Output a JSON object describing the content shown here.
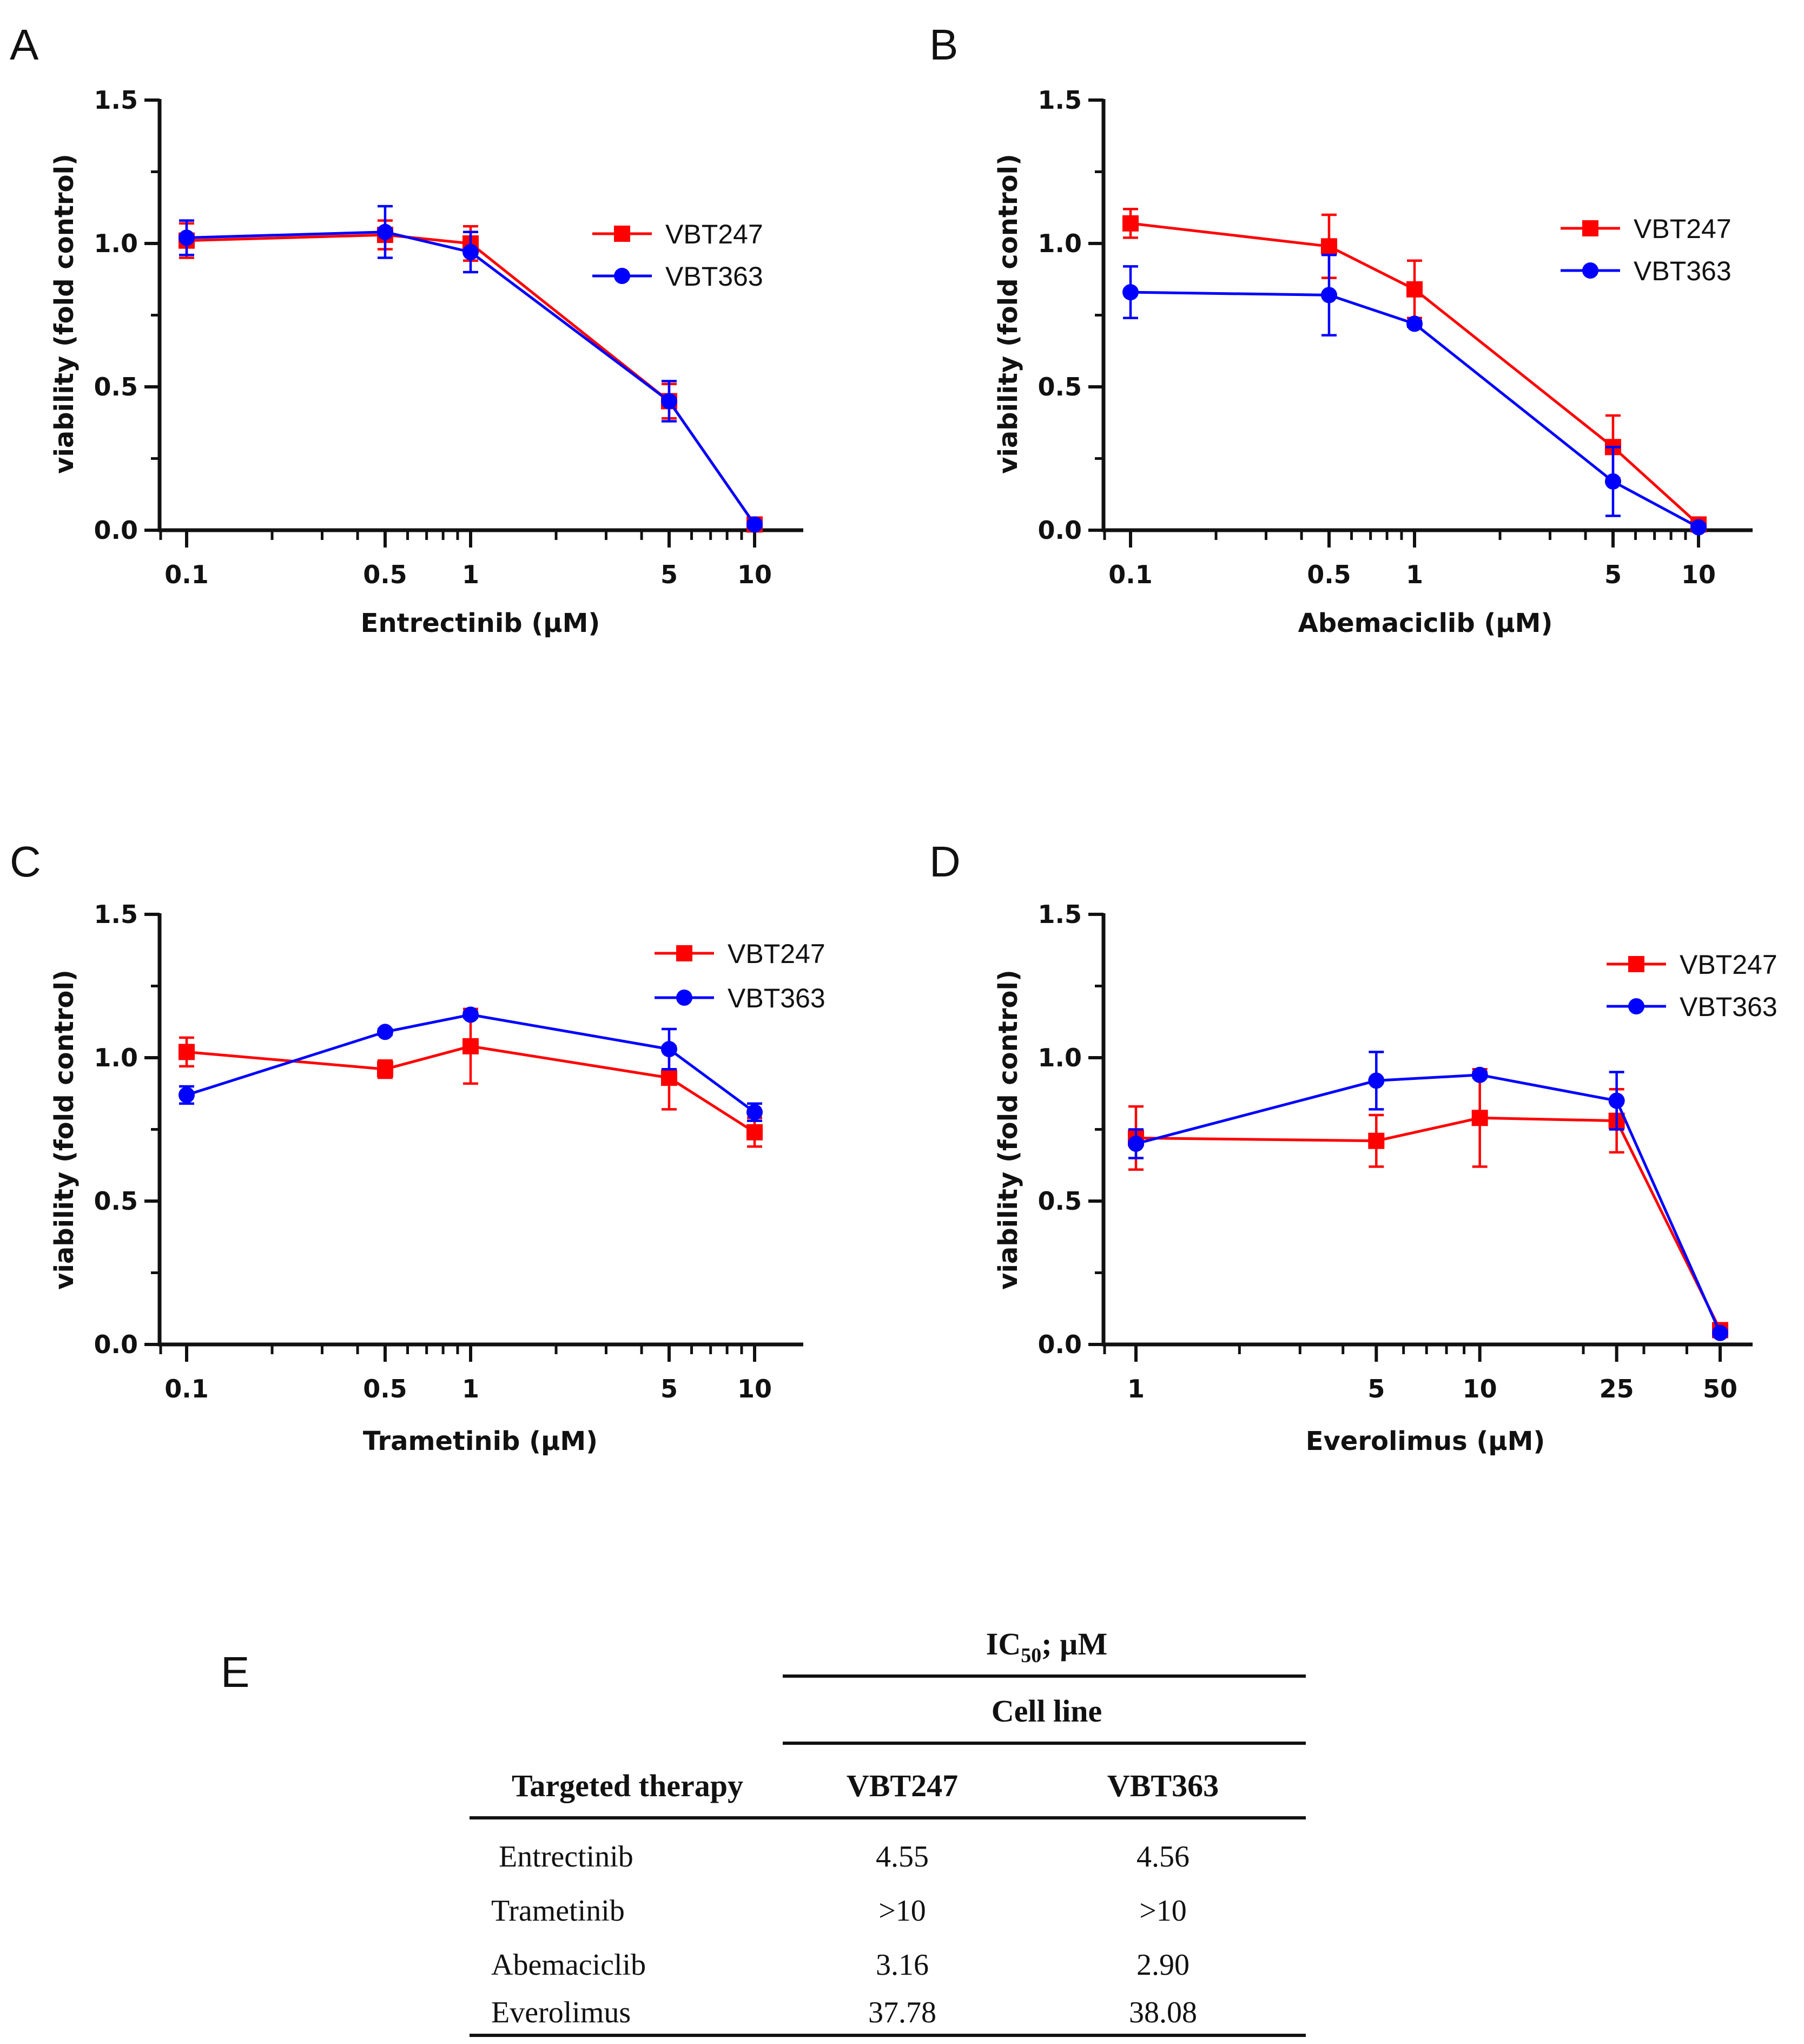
{
  "chart_data": [
    {
      "panel": "A",
      "type": "line",
      "xscale": "log",
      "xlabel": "Entrectinib (µM)",
      "ylabel": "viability (fold control)",
      "ylim": [
        0,
        1.5
      ],
      "yticks": [
        "0.0",
        "0.5",
        "1.0",
        "1.5"
      ],
      "xticks": [
        {
          "value": 0.1,
          "label": "0.1"
        },
        {
          "value": 0.5,
          "label": "0.5"
        },
        {
          "value": 1,
          "label": "1"
        },
        {
          "value": 5,
          "label": "5"
        },
        {
          "value": 10,
          "label": "10"
        }
      ],
      "x": [
        0.1,
        0.5,
        1,
        5,
        10
      ],
      "series": [
        {
          "name": "VBT247",
          "color": "#ff0000",
          "marker": "square",
          "values": [
            1.01,
            1.03,
            1.0,
            0.45,
            0.02
          ],
          "errors": [
            0.06,
            0.05,
            0.06,
            0.06,
            0.02
          ]
        },
        {
          "name": "VBT363",
          "color": "#0000ff",
          "marker": "circle",
          "values": [
            1.02,
            1.04,
            0.97,
            0.45,
            0.02
          ],
          "errors": [
            0.06,
            0.09,
            0.07,
            0.07,
            0.01
          ]
        }
      ],
      "legend": "top-right"
    },
    {
      "panel": "B",
      "type": "line",
      "xscale": "log",
      "xlabel": "Abemaciclib (µM)",
      "ylabel": "viability (fold control)",
      "ylim": [
        0,
        1.5
      ],
      "yticks": [
        "0.0",
        "0.5",
        "1.0",
        "1.5"
      ],
      "xticks": [
        {
          "value": 0.1,
          "label": "0.1"
        },
        {
          "value": 0.5,
          "label": "0.5"
        },
        {
          "value": 1,
          "label": "1"
        },
        {
          "value": 5,
          "label": "5"
        },
        {
          "value": 10,
          "label": "10"
        }
      ],
      "x": [
        0.1,
        0.5,
        1,
        5,
        10
      ],
      "series": [
        {
          "name": "VBT247",
          "color": "#ff0000",
          "marker": "square",
          "values": [
            1.07,
            0.99,
            0.84,
            0.29,
            0.02
          ],
          "errors": [
            0.05,
            0.11,
            0.1,
            0.11,
            0.01
          ]
        },
        {
          "name": "VBT363",
          "color": "#0000ff",
          "marker": "circle",
          "values": [
            0.83,
            0.82,
            0.72,
            0.17,
            0.01
          ],
          "errors": [
            0.09,
            0.14,
            0.01,
            0.12,
            0.01
          ]
        }
      ],
      "legend": "top-right"
    },
    {
      "panel": "C",
      "type": "line",
      "xscale": "log",
      "xlabel": "Trametinib (µM)",
      "ylabel": "viability (fold control)",
      "ylim": [
        0,
        1.5
      ],
      "yticks": [
        "0.0",
        "0.5",
        "1.0",
        "1.5"
      ],
      "xticks": [
        {
          "value": 0.1,
          "label": "0.1"
        },
        {
          "value": 0.5,
          "label": "0.5"
        },
        {
          "value": 1,
          "label": "1"
        },
        {
          "value": 5,
          "label": "5"
        },
        {
          "value": 10,
          "label": "10"
        }
      ],
      "x": [
        0.1,
        0.5,
        1,
        5,
        10
      ],
      "series": [
        {
          "name": "VBT247",
          "color": "#ff0000",
          "marker": "square",
          "values": [
            1.02,
            0.96,
            1.04,
            0.93,
            0.74
          ],
          "errors": [
            0.05,
            0.03,
            0.13,
            0.11,
            0.05
          ]
        },
        {
          "name": "VBT363",
          "color": "#0000ff",
          "marker": "circle",
          "values": [
            0.87,
            1.09,
            1.15,
            1.03,
            0.81
          ],
          "errors": [
            0.03,
            0.01,
            0.01,
            0.07,
            0.03
          ]
        }
      ],
      "legend": "top-right"
    },
    {
      "panel": "D",
      "type": "line",
      "xscale": "log",
      "xlabel": "Everolimus (µM)",
      "ylabel": "viability (fold control)",
      "ylim": [
        0,
        1.5
      ],
      "yticks": [
        "0.0",
        "0.5",
        "1.0",
        "1.5"
      ],
      "xticks": [
        {
          "value": 1,
          "label": "1"
        },
        {
          "value": 5,
          "label": "5"
        },
        {
          "value": 10,
          "label": "10"
        },
        {
          "value": 25,
          "label": "25"
        },
        {
          "value": 50,
          "label": "50"
        }
      ],
      "x": [
        1,
        5,
        10,
        25,
        50
      ],
      "series": [
        {
          "name": "VBT247",
          "color": "#ff0000",
          "marker": "square",
          "values": [
            0.72,
            0.71,
            0.79,
            0.78,
            0.05
          ],
          "errors": [
            0.11,
            0.09,
            0.17,
            0.11,
            0.01
          ]
        },
        {
          "name": "VBT363",
          "color": "#0000ff",
          "marker": "circle",
          "values": [
            0.7,
            0.92,
            0.94,
            0.85,
            0.04
          ],
          "errors": [
            0.05,
            0.1,
            0.01,
            0.1,
            0.01
          ]
        }
      ],
      "legend": "top-right"
    },
    {
      "panel": "E",
      "type": "table",
      "header_super": "IC",
      "header_super_sub": "50",
      "header_super_rest": "; µM",
      "header_group": "Cell line",
      "columns": [
        "Targeted therapy",
        "VBT247",
        "VBT363"
      ],
      "rows": [
        [
          "Entrectinib",
          "4.55",
          "4.56"
        ],
        [
          "Trametinib",
          ">10",
          ">10"
        ],
        [
          "Abemaciclib",
          "3.16",
          "2.90"
        ],
        [
          "Everolimus",
          "37.78",
          "38.08"
        ]
      ]
    }
  ]
}
